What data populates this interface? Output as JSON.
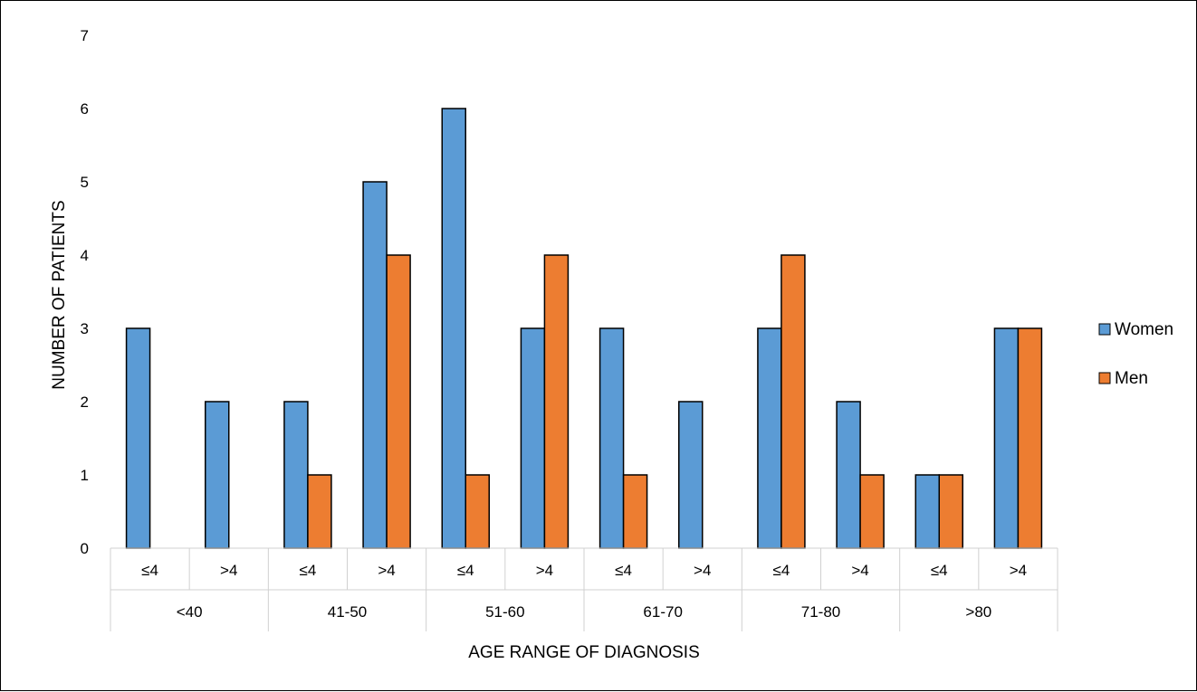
{
  "chart_data": {
    "type": "bar",
    "xlabel": "AGE RANGE OF DIAGNOSIS",
    "ylabel": "NUMBER OF PATIENTS",
    "ylim": [
      0,
      7
    ],
    "yticks": [
      "0",
      "1",
      "2",
      "3",
      "4",
      "5",
      "6",
      "7"
    ],
    "grid": false,
    "legend_position": "right",
    "groups": [
      {
        "label": "<40",
        "categories": [
          "≤4",
          ">4"
        ]
      },
      {
        "label": "41-50",
        "categories": [
          "≤4",
          ">4"
        ]
      },
      {
        "label": "51-60",
        "categories": [
          "≤4",
          ">4"
        ]
      },
      {
        "label": "61-70",
        "categories": [
          "≤4",
          ">4"
        ]
      },
      {
        "label": "71-80",
        "categories": [
          "≤4",
          ">4"
        ]
      },
      {
        "label": ">80",
        "categories": [
          "≤4",
          ">4"
        ]
      }
    ],
    "series": [
      {
        "name": "Women",
        "color": "#5B9BD5",
        "values": [
          3,
          2,
          2,
          5,
          6,
          3,
          3,
          2,
          3,
          2,
          1,
          3
        ]
      },
      {
        "name": "Men",
        "color": "#ED7D31",
        "values": [
          0,
          0,
          1,
          4,
          1,
          4,
          1,
          0,
          4,
          1,
          1,
          3
        ]
      }
    ]
  }
}
